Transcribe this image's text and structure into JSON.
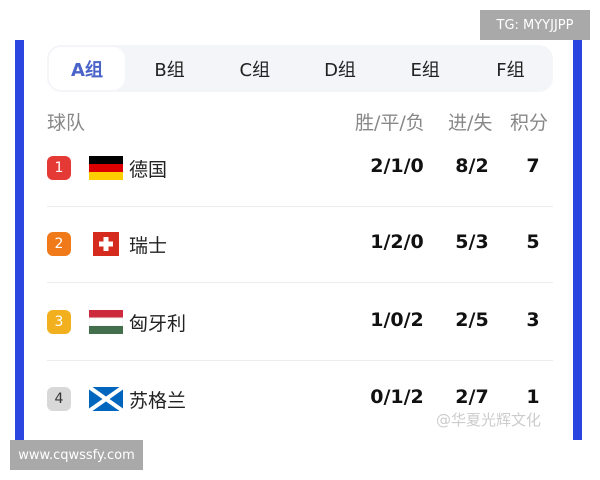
{
  "tabs": [
    "A组",
    "B组",
    "C组",
    "D组",
    "E组",
    "F组"
  ],
  "active_tab": "A组",
  "header": {
    "team": "球队",
    "wdl": "胜/平/负",
    "goals": "进/失",
    "points": "积分"
  },
  "rows": [
    {
      "rank": "1",
      "team": "德国",
      "flag": "germany-flag",
      "wdl": "2/1/0",
      "goals": "8/2",
      "points": "7",
      "rank_color": "#e53935"
    },
    {
      "rank": "2",
      "team": "瑞士",
      "flag": "switzerland-flag",
      "wdl": "1/2/0",
      "goals": "5/3",
      "points": "5",
      "rank_color": "#f07a1a"
    },
    {
      "rank": "3",
      "team": "匈牙利",
      "flag": "hungary-flag",
      "wdl": "1/0/2",
      "goals": "2/5",
      "points": "3",
      "rank_color": "#f2b01e"
    },
    {
      "rank": "4",
      "team": "苏格兰",
      "flag": "scotland-flag",
      "wdl": "0/1/2",
      "goals": "2/7",
      "points": "1",
      "rank_color": "#d8d8d8"
    }
  ],
  "watermarks": {
    "top": "TG: MYYJJPP",
    "bottom": "www.cqwssfy.com",
    "corner": "@华夏光辉文化"
  },
  "colors": {
    "accent": "#2a45e0",
    "active_tab": "#4a63c9"
  }
}
